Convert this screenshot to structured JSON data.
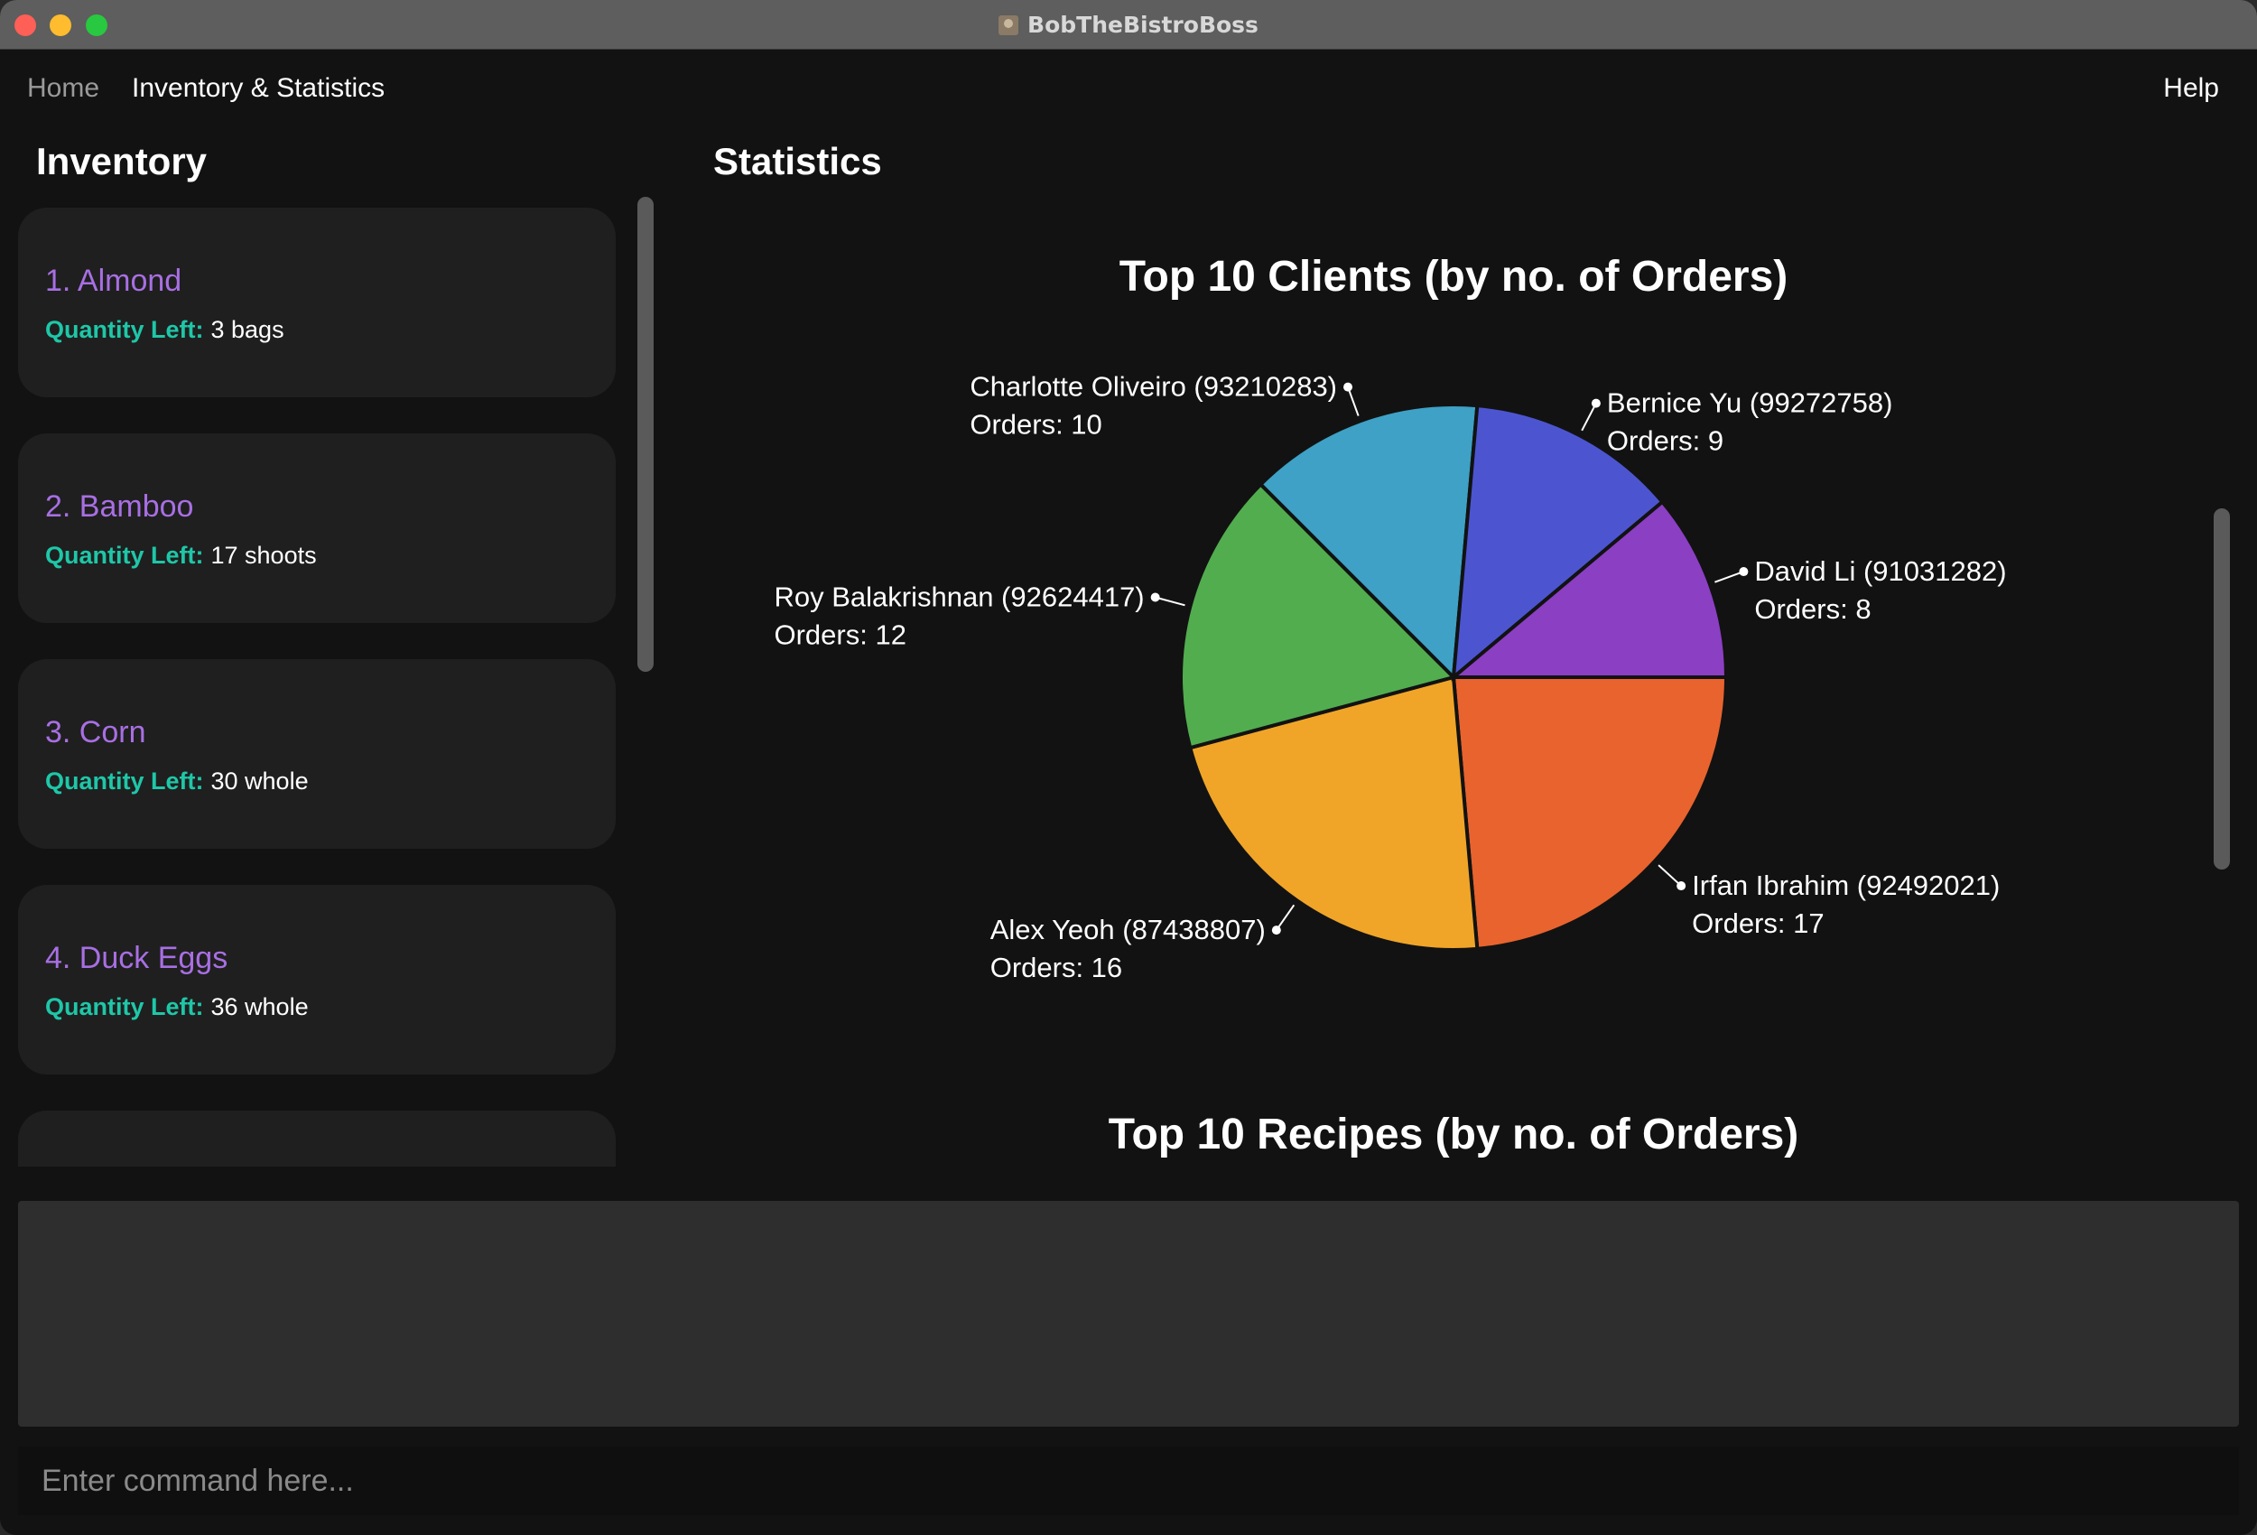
{
  "window": {
    "title": "BobTheBistroBoss"
  },
  "menu": {
    "home": "Home",
    "inventory_stats": "Inventory & Statistics",
    "help": "Help"
  },
  "inventory": {
    "title": "Inventory",
    "qty_label": "Quantity Left:",
    "items": [
      {
        "name": "1.  Almond",
        "qty": "3 bags"
      },
      {
        "name": "2.  Bamboo",
        "qty": "17 shoots"
      },
      {
        "name": "3.  Corn",
        "qty": "30 whole"
      },
      {
        "name": "4.  Duck Eggs",
        "qty": "36 whole"
      }
    ]
  },
  "statistics": {
    "title": "Statistics",
    "second_chart_title": "Top 10 Recipes (by no. of Orders)"
  },
  "chart_data": {
    "type": "pie",
    "title": "Top 10 Clients (by no. of Orders)",
    "slices": [
      {
        "name": "Irfan Ibrahim (92492021)",
        "label": "Orders: 17",
        "value": 17,
        "color": "#e8632e"
      },
      {
        "name": "Alex Yeoh (87438807)",
        "label": "Orders: 16",
        "value": 16,
        "color": "#f0a528"
      },
      {
        "name": "Roy Balakrishnan (92624417)",
        "label": "Orders: 12",
        "value": 12,
        "color": "#52ad4f"
      },
      {
        "name": "Charlotte Oliveiro (93210283)",
        "label": "Orders: 10",
        "value": 10,
        "color": "#3ea1c5"
      },
      {
        "name": "Bernice Yu (99272758)",
        "label": "Orders: 9",
        "value": 9,
        "color": "#4c55cf"
      },
      {
        "name": "David Li (91031282)",
        "label": "Orders: 8",
        "value": 8,
        "color": "#8b3fc3"
      }
    ]
  },
  "command": {
    "placeholder": "Enter command here..."
  }
}
